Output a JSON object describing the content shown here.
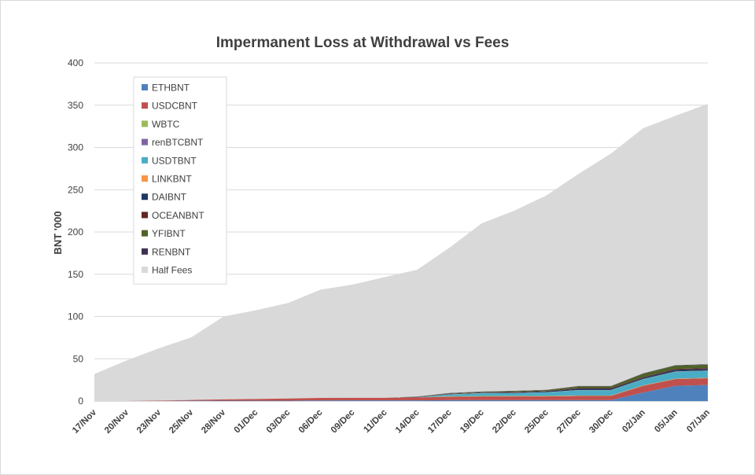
{
  "chart_data": {
    "type": "area",
    "stacked": true,
    "title": "Impermanent Loss at Withdrawal vs Fees",
    "xlabel": "",
    "ylabel": "BNT '000",
    "ylim": [
      0,
      400
    ],
    "yticks": [
      0,
      50,
      100,
      150,
      200,
      250,
      300,
      350,
      400
    ],
    "grid": true,
    "legend_position": "top-left",
    "categories": [
      "17/Nov",
      "20/Nov",
      "23/Nov",
      "25/Nov",
      "28/Nov",
      "01/Dec",
      "03/Dec",
      "06/Dec",
      "09/Dec",
      "11/Dec",
      "14/Dec",
      "17/Dec",
      "19/Dec",
      "22/Dec",
      "25/Dec",
      "27/Dec",
      "30/Dec",
      "02/Jan",
      "05/Jan",
      "07/Jan"
    ],
    "series": [
      {
        "name": "ETHBNT",
        "color": "#4f81bd",
        "values": [
          0,
          0,
          0,
          0.3,
          0.5,
          0.5,
          0.5,
          0.7,
          0.8,
          0.8,
          0.8,
          1,
          1,
          1,
          1,
          1,
          1,
          10,
          18,
          19
        ]
      },
      {
        "name": "USDCBNT",
        "color": "#c0504d",
        "values": [
          0,
          0,
          0.5,
          1,
          1.5,
          2,
          2.5,
          3,
          3,
          3,
          3.5,
          4,
          4.5,
          4.5,
          4.5,
          5,
          5,
          8,
          8,
          8
        ]
      },
      {
        "name": "WBTC",
        "color": "#9bbb59",
        "values": [
          0,
          0,
          0,
          0,
          0,
          0,
          0,
          0,
          0,
          0,
          0,
          0.5,
          0.5,
          0.5,
          0.5,
          0.5,
          0.5,
          0.5,
          0.5,
          0.5
        ]
      },
      {
        "name": "renBTCBNT",
        "color": "#8064a2",
        "values": [
          0,
          0,
          0,
          0,
          0,
          0,
          0,
          0,
          0,
          0,
          0,
          0.2,
          0.2,
          0.3,
          0.3,
          0.3,
          0.3,
          0.3,
          0.3,
          0.3
        ]
      },
      {
        "name": "USDTBNT",
        "color": "#4bacc6",
        "values": [
          0,
          0,
          0,
          0,
          0,
          0,
          0,
          0,
          0,
          0,
          0,
          2,
          3,
          3,
          4,
          6,
          6,
          7,
          8,
          8
        ]
      },
      {
        "name": "LINKBNT",
        "color": "#f79646",
        "values": [
          0,
          0,
          0,
          0,
          0,
          0,
          0,
          0,
          0,
          0,
          0,
          0.2,
          0.2,
          0.2,
          0.2,
          0.2,
          0.2,
          0.2,
          0.2,
          0.2
        ]
      },
      {
        "name": "DAIBNT",
        "color": "#1f3864",
        "values": [
          0,
          0,
          0,
          0,
          0,
          0,
          0,
          0,
          0,
          0,
          0.3,
          0.5,
          0.6,
          0.8,
          1,
          1.5,
          1.5,
          1.5,
          2,
          2
        ]
      },
      {
        "name": "OCEANBNT",
        "color": "#632523",
        "values": [
          0,
          0,
          0,
          0,
          0,
          0,
          0,
          0,
          0,
          0,
          0.2,
          0.3,
          0.3,
          0.5,
          0.5,
          0.8,
          0.8,
          0.8,
          1,
          1
        ]
      },
      {
        "name": "YFIBNT",
        "color": "#4f6228",
        "values": [
          0,
          0,
          0,
          0,
          0,
          0,
          0,
          0,
          0,
          0,
          0.3,
          0.5,
          0.7,
          1,
          1,
          2,
          2,
          4,
          4,
          4
        ]
      },
      {
        "name": "RENBNT",
        "color": "#3f3151",
        "values": [
          0,
          0,
          0,
          0,
          0,
          0,
          0,
          0,
          0,
          0,
          0.2,
          0.3,
          0.3,
          0.3,
          0.3,
          0.5,
          0.5,
          0.5,
          0.5,
          0.5
        ]
      },
      {
        "name": "Half Fees",
        "color": "#d9d9d9",
        "values": [
          32,
          48,
          62,
          74,
          98,
          105,
          113,
          128,
          134,
          143,
          150,
          172,
          199,
          213,
          230,
          251,
          275,
          290,
          295,
          308
        ]
      }
    ]
  }
}
